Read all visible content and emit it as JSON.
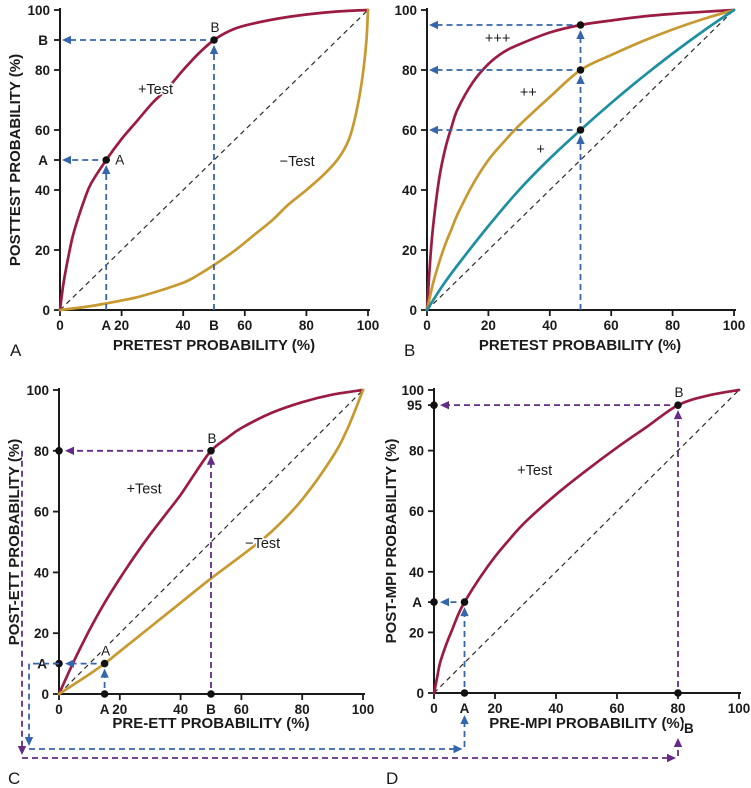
{
  "figure": {
    "background": "#ffffff",
    "colors": {
      "pos_test": "#9B1B42",
      "neg_test": "#C7992F",
      "weak_pos": "#1E8FA0",
      "arrow_blue": "#3565AD",
      "arrow_purple": "#652B86",
      "axis": "#1a1a1a",
      "identity": "#2b2b2b",
      "dot": "#111111"
    }
  },
  "chart_data": [
    {
      "id": "A",
      "panel_label": "A",
      "type": "line",
      "xlabel": "PRETEST PROBABILITY (%)",
      "ylabel": "POSTTEST PROBABILITY (%)",
      "xlim": [
        0,
        100
      ],
      "ylim": [
        0,
        100
      ],
      "xticks": [
        0,
        20,
        40,
        60,
        80,
        100
      ],
      "yticks": [
        0,
        20,
        40,
        60,
        80,
        100
      ],
      "extra_xticks": [
        {
          "label": "A",
          "x": 15
        },
        {
          "label": "B",
          "x": 50
        }
      ],
      "extra_yticks": [
        {
          "label": "B",
          "y": 90
        },
        {
          "label": "A",
          "y": 50
        }
      ],
      "identity_line": true,
      "series": [
        {
          "name": "positive-test",
          "label": "+Test",
          "color": "pos_test",
          "label_at": [
            31,
            72
          ],
          "points": [
            [
              0,
              0
            ],
            [
              1,
              8
            ],
            [
              2,
              14
            ],
            [
              4,
              24
            ],
            [
              6,
              31
            ],
            [
              8,
              37
            ],
            [
              10,
              42
            ],
            [
              15,
              50
            ],
            [
              20,
              57
            ],
            [
              25,
              63
            ],
            [
              30,
              69
            ],
            [
              35,
              74
            ],
            [
              40,
              80
            ],
            [
              45,
              85.5
            ],
            [
              50,
              90
            ],
            [
              55,
              93
            ],
            [
              60,
              94.8
            ],
            [
              70,
              97
            ],
            [
              80,
              98.5
            ],
            [
              90,
              99.5
            ],
            [
              100,
              100
            ]
          ]
        },
        {
          "name": "negative-test",
          "label": "−Test",
          "color": "neg_test",
          "label_at": [
            77,
            48
          ],
          "points": [
            [
              0,
              0
            ],
            [
              8,
              1
            ],
            [
              14,
              2
            ],
            [
              24,
              4
            ],
            [
              31,
              6
            ],
            [
              37,
              8
            ],
            [
              42,
              10
            ],
            [
              50,
              15
            ],
            [
              57,
              20
            ],
            [
              63,
              25
            ],
            [
              69,
              30
            ],
            [
              74,
              35
            ],
            [
              80,
              40
            ],
            [
              85.5,
              45
            ],
            [
              90,
              50
            ],
            [
              93,
              55
            ],
            [
              94.8,
              60
            ],
            [
              97,
              70
            ],
            [
              98.5,
              80
            ],
            [
              99.5,
              90
            ],
            [
              100,
              100
            ]
          ]
        }
      ],
      "guides": [
        {
          "x": 15,
          "y": 50,
          "color": "arrow_blue",
          "axis_dots": false,
          "point_label": "A",
          "label_side": "right"
        },
        {
          "x": 50,
          "y": 90,
          "color": "arrow_blue",
          "axis_dots": false,
          "point_label": "B",
          "label_side": "top"
        }
      ]
    },
    {
      "id": "B",
      "panel_label": "B",
      "type": "line",
      "xlabel": "PRETEST PROBABILITY (%)",
      "ylabel": "",
      "xlim": [
        0,
        100
      ],
      "ylim": [
        0,
        100
      ],
      "xticks": [
        0,
        20,
        40,
        60,
        80,
        100
      ],
      "yticks": [
        0,
        20,
        40,
        60,
        80,
        100
      ],
      "extra_xticks": [],
      "extra_yticks": [],
      "identity_line": true,
      "series": [
        {
          "name": "strong-positive",
          "label": "+++",
          "color": "pos_test",
          "label_at": [
            23,
            89
          ],
          "points": [
            [
              0,
              0
            ],
            [
              1,
              16
            ],
            [
              2,
              28
            ],
            [
              4,
              44
            ],
            [
              6,
              54
            ],
            [
              8,
              61
            ],
            [
              10,
              67
            ],
            [
              15,
              76
            ],
            [
              20,
              82
            ],
            [
              25,
              86
            ],
            [
              30,
              88.5
            ],
            [
              40,
              92.5
            ],
            [
              50,
              95
            ],
            [
              60,
              96.5
            ],
            [
              70,
              97.8
            ],
            [
              80,
              98.7
            ],
            [
              90,
              99.4
            ],
            [
              100,
              100
            ]
          ]
        },
        {
          "name": "moderate-positive",
          "label": "++",
          "color": "neg_test",
          "label_at": [
            33,
            71
          ],
          "points": [
            [
              0,
              0
            ],
            [
              2,
              9
            ],
            [
              4,
              16
            ],
            [
              6,
              22
            ],
            [
              8,
              27
            ],
            [
              10,
              32
            ],
            [
              15,
              42
            ],
            [
              20,
              50
            ],
            [
              25,
              56
            ],
            [
              30,
              61.5
            ],
            [
              40,
              71
            ],
            [
              50,
              80
            ],
            [
              60,
              85
            ],
            [
              70,
              89.5
            ],
            [
              80,
              93.5
            ],
            [
              90,
              97
            ],
            [
              100,
              100
            ]
          ]
        },
        {
          "name": "weak-positive",
          "label": "+",
          "color": "weak_pos",
          "label_at": [
            37,
            52
          ],
          "points": [
            [
              0,
              0
            ],
            [
              5,
              8
            ],
            [
              10,
              15
            ],
            [
              20,
              28
            ],
            [
              30,
              40
            ],
            [
              40,
              50.5
            ],
            [
              50,
              60
            ],
            [
              60,
              69
            ],
            [
              70,
              77.5
            ],
            [
              80,
              85.5
            ],
            [
              90,
              93
            ],
            [
              100,
              100
            ]
          ]
        }
      ],
      "guides": [
        {
          "x": 50,
          "y": 60,
          "color": "arrow_blue",
          "axis_dots": false
        },
        {
          "x": 50,
          "y": 80,
          "v_from": 60,
          "color": "arrow_blue",
          "axis_dots": false
        },
        {
          "x": 50,
          "y": 95,
          "v_from": 80,
          "color": "arrow_blue",
          "axis_dots": false
        }
      ]
    },
    {
      "id": "C",
      "panel_label": "C",
      "type": "line",
      "xlabel": "PRE-ETT PROBABILITY (%)",
      "ylabel": "POST-ETT PROBABILITY (%)",
      "xlim": [
        0,
        100
      ],
      "ylim": [
        0,
        100
      ],
      "xticks": [
        0,
        20,
        40,
        60,
        80,
        100
      ],
      "yticks": [
        0,
        20,
        40,
        60,
        80,
        100
      ],
      "extra_xticks": [
        {
          "label": "A",
          "x": 15
        },
        {
          "label": "B",
          "x": 50
        }
      ],
      "extra_yticks": [
        {
          "label": "A",
          "y": 10
        }
      ],
      "identity_line": true,
      "series": [
        {
          "name": "positive-test",
          "label": "+Test",
          "color": "pos_test",
          "label_at": [
            28,
            66
          ],
          "points": [
            [
              0,
              0
            ],
            [
              5,
              11
            ],
            [
              10,
              21
            ],
            [
              15,
              30
            ],
            [
              20,
              38
            ],
            [
              25,
              45.5
            ],
            [
              30,
              52.5
            ],
            [
              35,
              59
            ],
            [
              40,
              65.5
            ],
            [
              45,
              73
            ],
            [
              50,
              80
            ],
            [
              55,
              84
            ],
            [
              60,
              87.5
            ],
            [
              70,
              92.5
            ],
            [
              80,
              96
            ],
            [
              90,
              98.5
            ],
            [
              100,
              100
            ]
          ]
        },
        {
          "name": "negative-test",
          "label": "−Test",
          "color": "neg_test",
          "label_at": [
            67,
            48
          ],
          "points": [
            [
              0,
              0
            ],
            [
              10,
              6.5
            ],
            [
              15,
              10
            ],
            [
              20,
              14
            ],
            [
              30,
              22
            ],
            [
              40,
              30
            ],
            [
              50,
              38
            ],
            [
              60,
              45.5
            ],
            [
              70,
              53.5
            ],
            [
              80,
              64
            ],
            [
              90,
              78
            ],
            [
              95,
              87.5
            ],
            [
              100,
              100
            ]
          ]
        }
      ],
      "guides": [
        {
          "x": 15,
          "y": 10,
          "color": "arrow_blue",
          "axis_dots": true,
          "point_label": "A",
          "label_side": "top"
        },
        {
          "x": 50,
          "y": 80,
          "color": "arrow_purple",
          "axis_dots": true,
          "point_label": "B",
          "label_side": "top"
        }
      ]
    },
    {
      "id": "D",
      "panel_label": "D",
      "type": "line",
      "xlabel": "PRE-MPI PROBABILITY (%)",
      "ylabel": "POST-MPI PROBABILITY (%)",
      "xlim": [
        0,
        100
      ],
      "ylim": [
        0,
        100
      ],
      "xticks": [
        0,
        20,
        40,
        60,
        80,
        100
      ],
      "yticks": [
        0,
        20,
        40,
        60,
        80,
        100
      ],
      "extra_xticks": [
        {
          "label": "A",
          "x": 10
        }
      ],
      "extra_yticks": [
        {
          "label": "95",
          "y": 95
        },
        {
          "label": "A",
          "y": 30
        }
      ],
      "identity_line": true,
      "series": [
        {
          "name": "positive-test",
          "label": "+Test",
          "color": "pos_test",
          "label_at": [
            33,
            72
          ],
          "points": [
            [
              0,
              0
            ],
            [
              1,
              5
            ],
            [
              2,
              10
            ],
            [
              4,
              16
            ],
            [
              6,
              21
            ],
            [
              8,
              26
            ],
            [
              10,
              30
            ],
            [
              15,
              38
            ],
            [
              20,
              45
            ],
            [
              25,
              51
            ],
            [
              30,
              56.5
            ],
            [
              40,
              65.5
            ],
            [
              50,
              73.5
            ],
            [
              60,
              81
            ],
            [
              70,
              88
            ],
            [
              80,
              95
            ],
            [
              90,
              98.2
            ],
            [
              100,
              100
            ]
          ]
        }
      ],
      "guides": [
        {
          "x": 10,
          "y": 30,
          "color": "arrow_blue",
          "axis_dots": true
        },
        {
          "x": 80,
          "y": 95,
          "color": "arrow_purple",
          "axis_dots": true,
          "point_label": "B",
          "label_side": "top"
        }
      ]
    }
  ],
  "connectors": [
    {
      "color": "arrow_blue",
      "from_panel": "C",
      "from_y": 10,
      "to_panel": "D",
      "to_x": 10,
      "stub": true,
      "end_label": ""
    },
    {
      "color": "arrow_purple",
      "from_panel": "C",
      "from_y": 80,
      "to_panel": "D",
      "to_x": 80,
      "stub": false,
      "end_label": "B"
    }
  ]
}
